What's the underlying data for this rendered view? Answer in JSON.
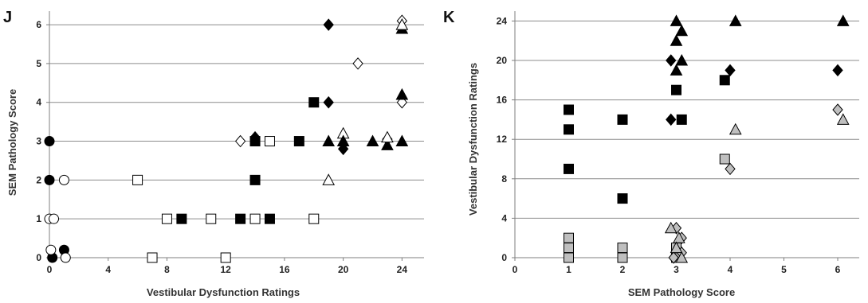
{
  "colors": {
    "black": "#000000",
    "white": "#ffffff",
    "gray": "#bfbfbf",
    "gridline": "#8c8c8c",
    "axis": "#7f7f7f"
  },
  "chart_data": [
    {
      "panel": "J",
      "type": "scatter",
      "xlabel": "Vestibular Dysfunction Ratings",
      "ylabel": "SEM Pathology Score",
      "xlim": [
        0,
        25.5
      ],
      "ylim": [
        0,
        6.35
      ],
      "x_ticks": [
        0,
        4,
        8,
        12,
        16,
        20,
        24
      ],
      "y_ticks": [
        0,
        1,
        2,
        3,
        4,
        5,
        6
      ],
      "grid": "horizontal",
      "points": [
        {
          "shape": "circle",
          "fill": "black",
          "x": 0,
          "y": 3
        },
        {
          "shape": "circle",
          "fill": "black",
          "x": 0,
          "y": 2
        },
        {
          "shape": "circle",
          "fill": "white",
          "x": 0,
          "y": 1
        },
        {
          "shape": "circle",
          "fill": "white",
          "x": 0.3,
          "y": 1
        },
        {
          "shape": "circle",
          "fill": "white",
          "x": 1,
          "y": 2
        },
        {
          "shape": "circle",
          "fill": "black",
          "x": 0.2,
          "y": 0
        },
        {
          "shape": "circle",
          "fill": "black",
          "x": 1,
          "y": 0.2
        },
        {
          "shape": "circle",
          "fill": "white",
          "x": 0.1,
          "y": 0.2
        },
        {
          "shape": "circle",
          "fill": "white",
          "x": 1.1,
          "y": 0
        },
        {
          "shape": "square",
          "fill": "white",
          "x": 6,
          "y": 2
        },
        {
          "shape": "square",
          "fill": "white",
          "x": 7,
          "y": 0
        },
        {
          "shape": "square",
          "fill": "white",
          "x": 12,
          "y": 0
        },
        {
          "shape": "square",
          "fill": "white",
          "x": 8,
          "y": 1
        },
        {
          "shape": "square",
          "fill": "black",
          "x": 9,
          "y": 1
        },
        {
          "shape": "square",
          "fill": "white",
          "x": 11,
          "y": 1
        },
        {
          "shape": "square",
          "fill": "black",
          "x": 13,
          "y": 1
        },
        {
          "shape": "square",
          "fill": "white",
          "x": 14,
          "y": 1
        },
        {
          "shape": "square",
          "fill": "black",
          "x": 15,
          "y": 1
        },
        {
          "shape": "square",
          "fill": "white",
          "x": 18,
          "y": 1
        },
        {
          "shape": "square",
          "fill": "black",
          "x": 14,
          "y": 2
        },
        {
          "shape": "square",
          "fill": "black",
          "x": 14,
          "y": 3
        },
        {
          "shape": "square",
          "fill": "white",
          "x": 15,
          "y": 3
        },
        {
          "shape": "square",
          "fill": "black",
          "x": 17,
          "y": 3
        },
        {
          "shape": "square",
          "fill": "black",
          "x": 18,
          "y": 4
        },
        {
          "shape": "diamond",
          "fill": "white",
          "x": 13,
          "y": 3
        },
        {
          "shape": "diamond",
          "fill": "black",
          "x": 14,
          "y": 3.1
        },
        {
          "shape": "diamond",
          "fill": "black",
          "x": 19,
          "y": 6
        },
        {
          "shape": "diamond",
          "fill": "black",
          "x": 19,
          "y": 4
        },
        {
          "shape": "diamond",
          "fill": "white",
          "x": 21,
          "y": 5
        },
        {
          "shape": "diamond",
          "fill": "black",
          "x": 20,
          "y": 2.8
        },
        {
          "shape": "diamond",
          "fill": "white",
          "x": 24,
          "y": 6.1
        },
        {
          "shape": "diamond",
          "fill": "white",
          "x": 24,
          "y": 4
        },
        {
          "shape": "diamond",
          "fill": "white",
          "x": 23,
          "y": 3.05
        },
        {
          "shape": "triangle",
          "fill": "black",
          "x": 19,
          "y": 3
        },
        {
          "shape": "triangle",
          "fill": "white",
          "x": 20,
          "y": 3.2
        },
        {
          "shape": "triangle",
          "fill": "black",
          "x": 20,
          "y": 3
        },
        {
          "shape": "triangle",
          "fill": "white",
          "x": 19,
          "y": 2
        },
        {
          "shape": "triangle",
          "fill": "black",
          "x": 22,
          "y": 3
        },
        {
          "shape": "triangle",
          "fill": "black",
          "x": 23,
          "y": 2.9
        },
        {
          "shape": "triangle",
          "fill": "white",
          "x": 23,
          "y": 3.1
        },
        {
          "shape": "triangle",
          "fill": "black",
          "x": 24,
          "y": 3
        },
        {
          "shape": "triangle",
          "fill": "black",
          "x": 24,
          "y": 4.2
        },
        {
          "shape": "triangle",
          "fill": "black",
          "x": 24,
          "y": 5.9
        },
        {
          "shape": "triangle",
          "fill": "white",
          "x": 24,
          "y": 6
        }
      ]
    },
    {
      "panel": "K",
      "type": "scatter",
      "xlabel": "SEM Pathology Score",
      "ylabel": "Vestibular Dysfunction Ratings",
      "xlim": [
        0,
        6.4
      ],
      "ylim": [
        0,
        25
      ],
      "x_ticks": [
        0,
        1,
        2,
        3,
        4,
        5,
        6
      ],
      "y_ticks": [
        0,
        4,
        8,
        12,
        16,
        20,
        24
      ],
      "grid": "horizontal",
      "points": [
        {
          "shape": "square",
          "fill": "black",
          "x": 1,
          "y": 15
        },
        {
          "shape": "square",
          "fill": "black",
          "x": 1,
          "y": 13
        },
        {
          "shape": "square",
          "fill": "black",
          "x": 1,
          "y": 9
        },
        {
          "shape": "square",
          "fill": "gray",
          "x": 1,
          "y": 2
        },
        {
          "shape": "square",
          "fill": "gray",
          "x": 1,
          "y": 1
        },
        {
          "shape": "square",
          "fill": "gray",
          "x": 1,
          "y": 0
        },
        {
          "shape": "square",
          "fill": "black",
          "x": 2,
          "y": 14
        },
        {
          "shape": "square",
          "fill": "black",
          "x": 2,
          "y": 6
        },
        {
          "shape": "square",
          "fill": "gray",
          "x": 2,
          "y": 1
        },
        {
          "shape": "square",
          "fill": "gray",
          "x": 2,
          "y": 0
        },
        {
          "shape": "square",
          "fill": "black",
          "x": 3,
          "y": 17
        },
        {
          "shape": "square",
          "fill": "black",
          "x": 3.1,
          "y": 14
        },
        {
          "shape": "square",
          "fill": "gray",
          "x": 3,
          "y": 1
        },
        {
          "shape": "square",
          "fill": "gray",
          "x": 3,
          "y": 0
        },
        {
          "shape": "square",
          "fill": "black",
          "x": 3.9,
          "y": 18
        },
        {
          "shape": "square",
          "fill": "gray",
          "x": 3.9,
          "y": 10
        },
        {
          "shape": "diamond",
          "fill": "black",
          "x": 2.9,
          "y": 20
        },
        {
          "shape": "diamond",
          "fill": "black",
          "x": 2.9,
          "y": 14
        },
        {
          "shape": "diamond",
          "fill": "black",
          "x": 4,
          "y": 19
        },
        {
          "shape": "diamond",
          "fill": "black",
          "x": 6,
          "y": 19
        },
        {
          "shape": "diamond",
          "fill": "gray",
          "x": 4,
          "y": 9
        },
        {
          "shape": "diamond",
          "fill": "gray",
          "x": 6,
          "y": 15
        },
        {
          "shape": "diamond",
          "fill": "gray",
          "x": 3,
          "y": 3
        },
        {
          "shape": "diamond",
          "fill": "gray",
          "x": 3.1,
          "y": 2
        },
        {
          "shape": "diamond",
          "fill": "gray",
          "x": 2.95,
          "y": 0
        },
        {
          "shape": "diamond",
          "fill": "gray",
          "x": 3.1,
          "y": 0.5
        },
        {
          "shape": "triangle",
          "fill": "black",
          "x": 3,
          "y": 24
        },
        {
          "shape": "triangle",
          "fill": "black",
          "x": 3.1,
          "y": 23
        },
        {
          "shape": "triangle",
          "fill": "black",
          "x": 3,
          "y": 22
        },
        {
          "shape": "triangle",
          "fill": "black",
          "x": 3.1,
          "y": 20
        },
        {
          "shape": "triangle",
          "fill": "black",
          "x": 3,
          "y": 19
        },
        {
          "shape": "triangle",
          "fill": "black",
          "x": 4.1,
          "y": 24
        },
        {
          "shape": "triangle",
          "fill": "black",
          "x": 6.1,
          "y": 24
        },
        {
          "shape": "triangle",
          "fill": "gray",
          "x": 4.1,
          "y": 13
        },
        {
          "shape": "triangle",
          "fill": "gray",
          "x": 6.1,
          "y": 14
        },
        {
          "shape": "triangle",
          "fill": "gray",
          "x": 2.9,
          "y": 3
        },
        {
          "shape": "triangle",
          "fill": "gray",
          "x": 3.05,
          "y": 2
        },
        {
          "shape": "triangle",
          "fill": "gray",
          "x": 3,
          "y": 1
        },
        {
          "shape": "triangle",
          "fill": "gray",
          "x": 3.1,
          "y": 0
        }
      ]
    }
  ]
}
